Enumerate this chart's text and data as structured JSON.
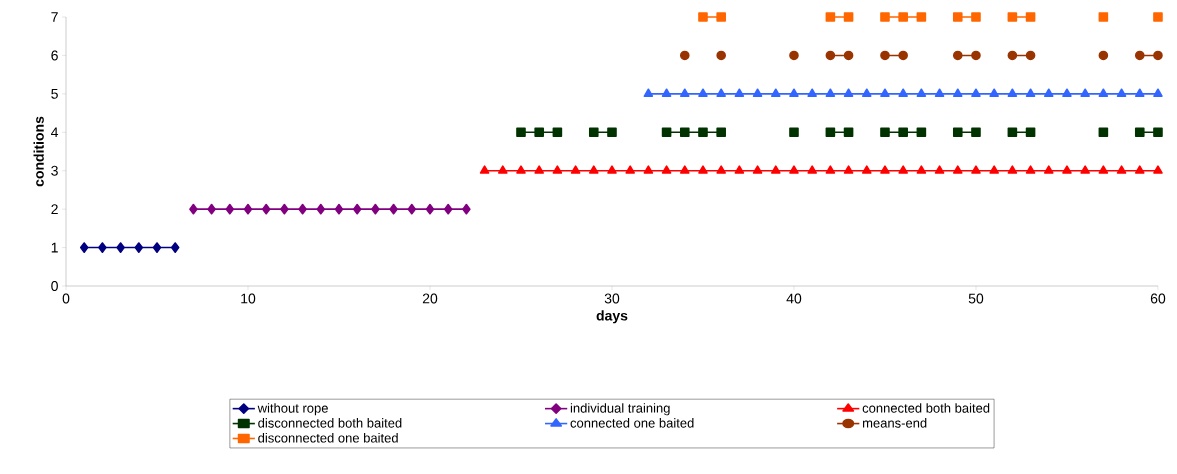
{
  "chart_data": {
    "type": "line",
    "xlabel": "days",
    "ylabel": "conditions",
    "xlim": [
      0,
      60
    ],
    "ylim": [
      0,
      7
    ],
    "xticks": [
      0,
      10,
      20,
      30,
      40,
      50,
      60
    ],
    "yticks": [
      0,
      1,
      2,
      3,
      4,
      5,
      6,
      7
    ],
    "grid": false,
    "legend": "bottom",
    "series": [
      {
        "name": "without rope",
        "color": "#000080",
        "marker": "diamond",
        "x": [
          1,
          2,
          3,
          4,
          5,
          6
        ],
        "values": [
          1,
          1,
          1,
          1,
          1,
          1
        ]
      },
      {
        "name": "individual training",
        "color": "#800080",
        "marker": "diamond",
        "x": [
          7,
          8,
          9,
          10,
          11,
          12,
          13,
          14,
          15,
          16,
          17,
          18,
          19,
          20,
          21,
          22
        ],
        "values": [
          2,
          2,
          2,
          2,
          2,
          2,
          2,
          2,
          2,
          2,
          2,
          2,
          2,
          2,
          2,
          2
        ]
      },
      {
        "name": "connected both baited",
        "color": "#ff0000",
        "marker": "triangle",
        "x": [
          23,
          24,
          25,
          26,
          27,
          28,
          29,
          30,
          31,
          32,
          33,
          34,
          35,
          36,
          37,
          38,
          39,
          40,
          41,
          42,
          43,
          44,
          45,
          46,
          47,
          48,
          49,
          50,
          51,
          52,
          53,
          54,
          55,
          56,
          57,
          58,
          59,
          60
        ],
        "values": [
          3,
          3,
          3,
          3,
          3,
          3,
          3,
          3,
          3,
          3,
          3,
          3,
          3,
          3,
          3,
          3,
          3,
          3,
          3,
          3,
          3,
          3,
          3,
          3,
          3,
          3,
          3,
          3,
          3,
          3,
          3,
          3,
          3,
          3,
          3,
          3,
          3,
          3
        ]
      },
      {
        "name": "disconnected both baited",
        "color": "#003300",
        "marker": "square",
        "x": [
          25,
          26,
          27,
          28,
          29,
          30,
          31,
          32,
          33,
          34,
          35,
          36,
          37,
          38,
          39,
          40,
          41,
          42,
          43,
          44,
          45,
          46,
          47,
          48,
          49,
          50,
          51,
          52,
          53,
          54,
          55,
          56,
          57,
          58,
          59,
          60
        ],
        "values": [
          4,
          4,
          4,
          null,
          4,
          4,
          null,
          null,
          4,
          4,
          4,
          4,
          null,
          null,
          null,
          4,
          null,
          4,
          4,
          null,
          4,
          4,
          4,
          null,
          4,
          4,
          null,
          4,
          4,
          null,
          null,
          null,
          4,
          null,
          4,
          4
        ]
      },
      {
        "name": "connected one baited",
        "color": "#3366ff",
        "marker": "triangle",
        "x": [
          32,
          33,
          34,
          35,
          36,
          37,
          38,
          39,
          40,
          41,
          42,
          43,
          44,
          45,
          46,
          47,
          48,
          49,
          50,
          51,
          52,
          53,
          54,
          55,
          56,
          57,
          58,
          59,
          60
        ],
        "values": [
          5,
          5,
          5,
          5,
          5,
          5,
          5,
          5,
          5,
          5,
          5,
          5,
          5,
          5,
          5,
          5,
          5,
          5,
          5,
          5,
          5,
          5,
          5,
          5,
          5,
          5,
          5,
          5,
          5
        ]
      },
      {
        "name": "means-end",
        "color": "#993300",
        "marker": "circle",
        "x": [
          34,
          35,
          36,
          37,
          38,
          39,
          40,
          41,
          42,
          43,
          44,
          45,
          46,
          47,
          48,
          49,
          50,
          51,
          52,
          53,
          54,
          55,
          56,
          57,
          58,
          59,
          60
        ],
        "values": [
          6,
          null,
          6,
          null,
          null,
          null,
          6,
          null,
          6,
          6,
          null,
          6,
          6,
          null,
          null,
          6,
          6,
          null,
          6,
          6,
          null,
          null,
          null,
          6,
          null,
          6,
          6
        ]
      },
      {
        "name": "disconnected one baited",
        "color": "#ff6600",
        "marker": "square",
        "x": [
          35,
          36,
          37,
          38,
          39,
          40,
          41,
          42,
          43,
          44,
          45,
          46,
          47,
          48,
          49,
          50,
          51,
          52,
          53,
          54,
          55,
          56,
          57,
          58,
          59,
          60
        ],
        "values": [
          7,
          7,
          null,
          null,
          null,
          null,
          null,
          7,
          7,
          null,
          7,
          7,
          7,
          null,
          7,
          7,
          null,
          7,
          7,
          null,
          null,
          null,
          7,
          null,
          null,
          7
        ]
      }
    ]
  }
}
